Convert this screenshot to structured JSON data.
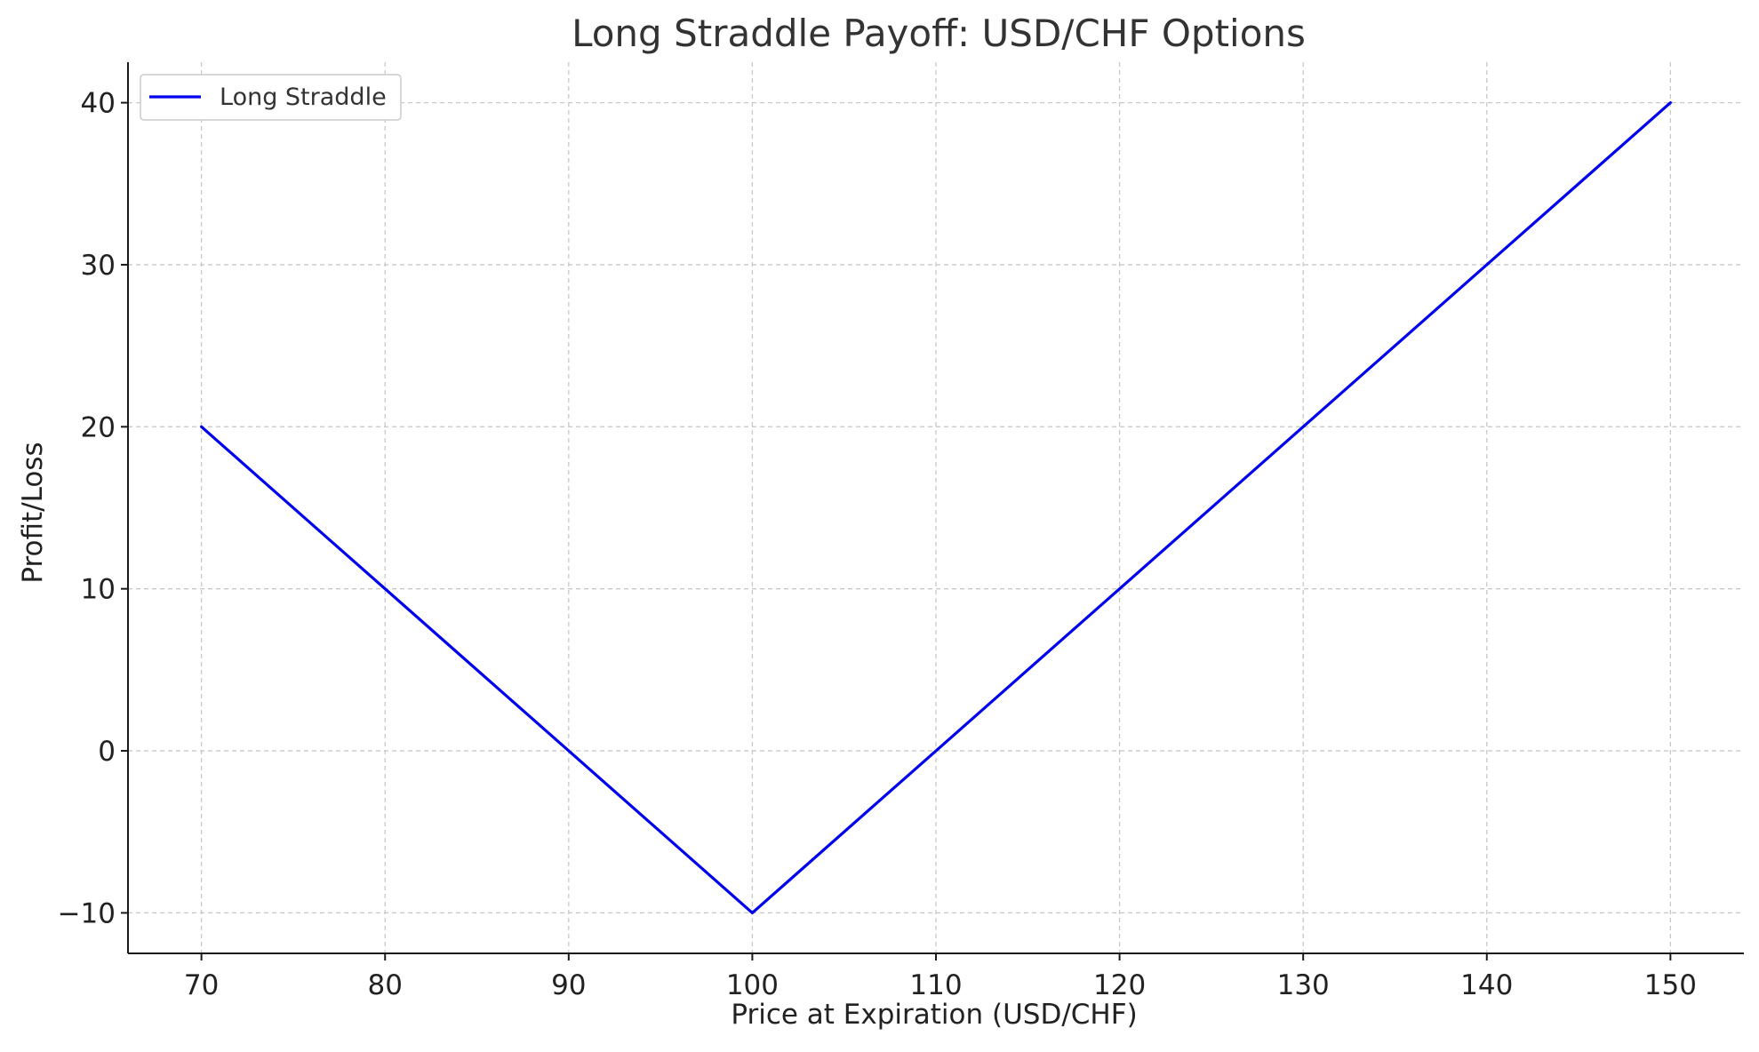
{
  "chart_data": {
    "type": "line",
    "title": "Long Straddle Payoff: USD/CHF Options",
    "xlabel": "Price at Expiration (USD/CHF)",
    "ylabel": "Profit/Loss",
    "xlim": [
      66,
      154
    ],
    "ylim": [
      -12.5,
      42.5
    ],
    "xticks": [
      70,
      80,
      90,
      100,
      110,
      120,
      130,
      140,
      150
    ],
    "yticks": [
      -10,
      0,
      10,
      20,
      30,
      40
    ],
    "xtick_labels": [
      "70",
      "80",
      "90",
      "100",
      "110",
      "120",
      "130",
      "140",
      "150"
    ],
    "ytick_labels": [
      "−10",
      "0",
      "10",
      "20",
      "30",
      "40"
    ],
    "grid": true,
    "legend_position": "top-left",
    "series": [
      {
        "name": "Long Straddle",
        "color": "#0000ee",
        "x": [
          70,
          100,
          150
        ],
        "y": [
          20,
          -10,
          40
        ]
      }
    ]
  }
}
